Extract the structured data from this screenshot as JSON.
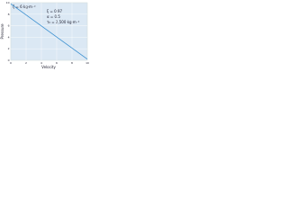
{
  "chart_data": {
    "type": "line",
    "x_label": "Velocity",
    "y_label": "Pressure",
    "annotations": [
      "ζ = 6 kg·m⁻²",
      "ξ = 0.97",
      "α = 0.5",
      "τ₀ = 2,500 kg·m⁻²"
    ],
    "x": [
      0,
      10
    ],
    "series": [
      {
        "name": "Pressure",
        "color": "#3a8fd0",
        "values": [
          9.8,
          0.2
        ]
      }
    ],
    "xlim": [
      0,
      10
    ],
    "xticks": [
      0,
      2,
      4,
      6,
      8,
      10
    ],
    "ylim": [
      0,
      10
    ],
    "yticks": [
      0,
      2,
      4,
      6,
      8,
      10
    ],
    "grid": true
  }
}
